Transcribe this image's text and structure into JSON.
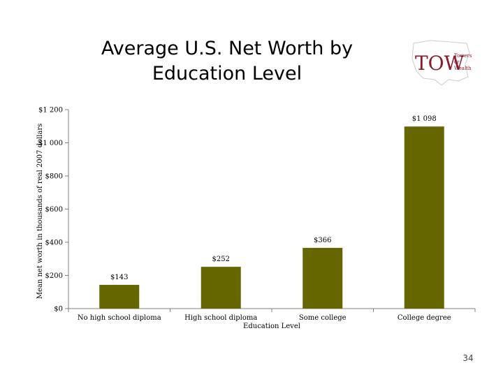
{
  "slide": {
    "title": "Average U.S. Net Worth by Education Level",
    "page_number": "34"
  },
  "logo": {
    "main_text": "TOW",
    "sub_text_1": "Towers",
    "sub_text_2": "or",
    "sub_text_3": "Wealth",
    "color": "#8b1a2b"
  },
  "chart_data": {
    "type": "bar",
    "categories": [
      "No high school diploma",
      "High school diploma",
      "Some college",
      "College degree"
    ],
    "values": [
      143,
      252,
      366,
      1098
    ],
    "data_labels": [
      "$143",
      "$252",
      "$366",
      "$1 098"
    ],
    "ylabel": "Mean net worth in thousands of real 2007 dollars",
    "xlabel": "Education Level",
    "ylim": [
      0,
      1200
    ],
    "yticks": [
      0,
      200,
      400,
      600,
      800,
      1000,
      1200
    ],
    "ytick_labels": [
      "$0",
      "$200",
      "$400",
      "$600",
      "$800",
      "$1 000",
      "$1 200"
    ],
    "grid": false,
    "bar_color": "#666600"
  }
}
